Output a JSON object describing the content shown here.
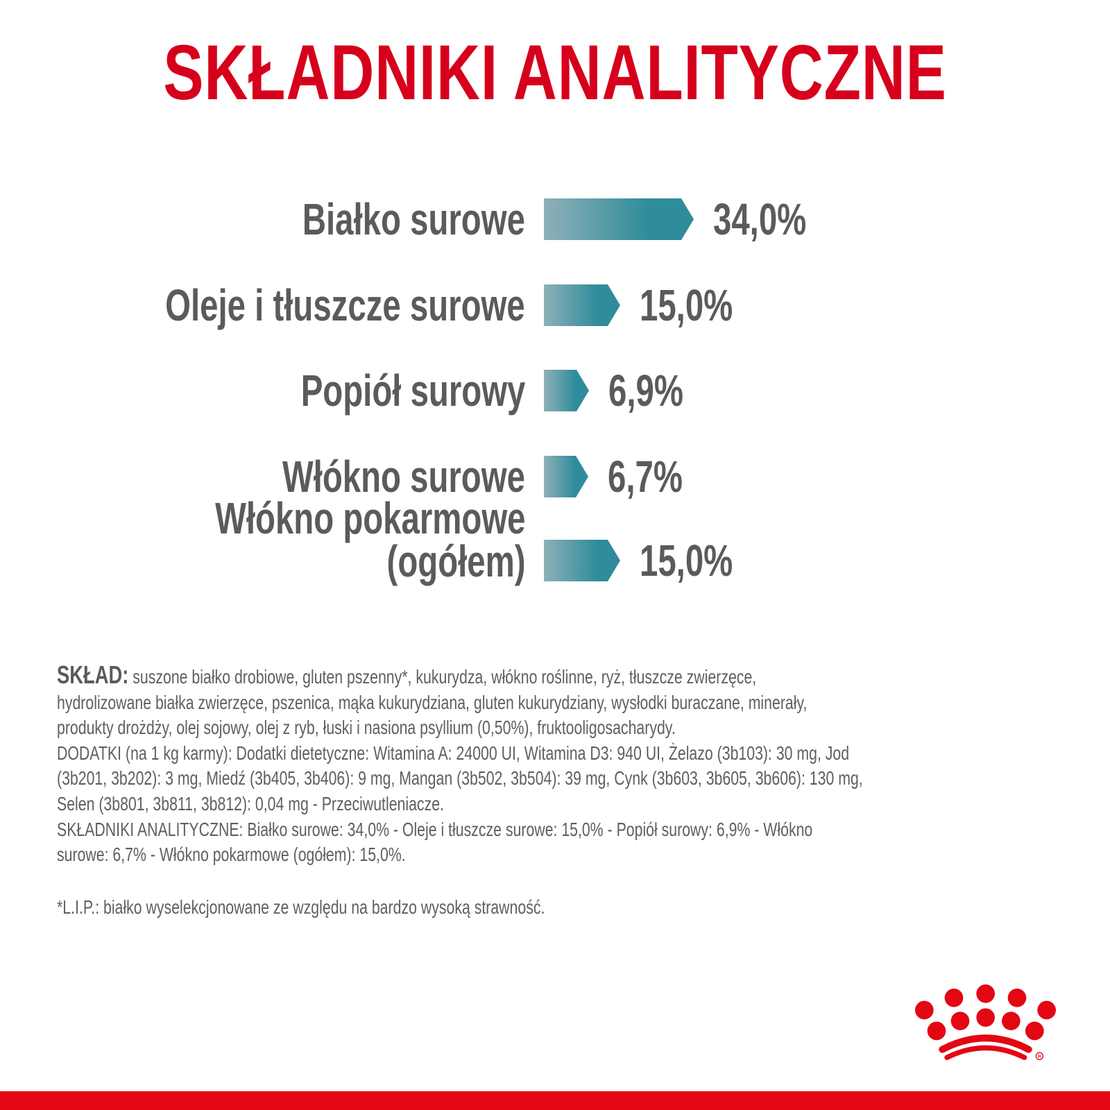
{
  "title": "SKŁADNIKI ANALITYCZNE",
  "colors": {
    "brand_red": "#d6001c",
    "bar_start": "#8fb0b8",
    "bar_end": "#2f8c9b",
    "text": "#5b5b5b"
  },
  "chart_data": {
    "type": "bar",
    "orientation": "horizontal",
    "categories": [
      "Białko surowe",
      "Oleje i tłuszcze surowe",
      "Popiół surowy",
      "Włókno surowe",
      "Włókno pokarmowe (ogółem)"
    ],
    "label_lines": [
      [
        "Białko surowe"
      ],
      [
        "Oleje i tłuszcze surowe"
      ],
      [
        "Popiół surowy"
      ],
      [
        "Włókno surowe"
      ],
      [
        "Włókno pokarmowe",
        "(ogółem)"
      ]
    ],
    "values": [
      34.0,
      15.0,
      6.9,
      6.7,
      15.0
    ],
    "value_labels": [
      "34,0%",
      "15,0%",
      "6,9%",
      "6,7%",
      "15,0%"
    ],
    "unit": "%",
    "grid": false
  },
  "composition": {
    "heading": "SKŁAD:",
    "lines": [
      "suszone białko drobiowe, gluten pszenny*, kukurydza, włókno roślinne, ryż, tłuszcze zwierzęce,",
      "hydrolizowane białka zwierzęce, pszenica, mąka kukurydziana, gluten kukurydziany, wysłodki buraczane, minerały,",
      "produkty drożdży, olej sojowy, olej z ryb, łuski i nasiona psyllium (0,50%), fruktooligosacharydy.",
      "DODATKI (na 1 kg karmy): Dodatki dietetyczne: Witamina A: 24000 UI, Witamina D3: 940 UI, Żelazo (3b103): 30 mg, Jod",
      "(3b201, 3b202): 3 mg, Miedź (3b405, 3b406): 9 mg, Mangan (3b502, 3b504): 39 mg, Cynk (3b603, 3b605, 3b606): 130 mg,",
      "Selen (3b801, 3b811, 3b812): 0,04 mg - Przeciwutleniacze.",
      "SKŁADNIKI ANALITYCZNE: Białko surowe: 34,0% - Oleje i tłuszcze surowe: 15,0% - Popiół surowy: 6,9% - Włókno",
      "surowe: 6,7% - Włókno pokarmowe (ogółem): 15,0%."
    ]
  },
  "footnote": "*L.I.P.: białko wyselekcjonowane ze względu na bardzo wysoką strawność.",
  "logo": {
    "name": "crown-logo",
    "registered_mark": "®"
  }
}
